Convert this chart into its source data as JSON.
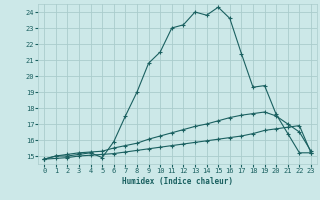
{
  "title": "",
  "xlabel": "Humidex (Indice chaleur)",
  "bg_color": "#cce8e8",
  "grid_color": "#aacccc",
  "line_color": "#1a6060",
  "xlim": [
    -0.5,
    23.5
  ],
  "ylim": [
    14.5,
    24.5
  ],
  "yticks": [
    15,
    16,
    17,
    18,
    19,
    20,
    21,
    22,
    23,
    24
  ],
  "xticks": [
    0,
    1,
    2,
    3,
    4,
    5,
    6,
    7,
    8,
    9,
    10,
    11,
    12,
    13,
    14,
    15,
    16,
    17,
    18,
    19,
    20,
    21,
    22,
    23
  ],
  "line1_x": [
    0,
    1,
    2,
    3,
    4,
    5,
    6,
    7,
    8,
    9,
    10,
    11,
    12,
    13,
    14,
    15,
    16,
    17,
    18,
    19,
    20,
    21,
    22,
    23
  ],
  "line1_y": [
    14.8,
    15.0,
    15.0,
    15.1,
    15.2,
    14.9,
    15.9,
    17.5,
    19.0,
    20.8,
    21.5,
    23.0,
    23.2,
    24.0,
    23.8,
    24.3,
    23.6,
    21.4,
    19.3,
    19.4,
    17.6,
    16.4,
    15.2,
    15.2
  ],
  "line2_x": [
    0,
    1,
    2,
    3,
    4,
    5,
    6,
    7,
    8,
    9,
    10,
    11,
    12,
    13,
    14,
    15,
    16,
    17,
    18,
    19,
    20,
    21,
    22,
    23
  ],
  "line2_y": [
    14.8,
    15.0,
    15.1,
    15.2,
    15.25,
    15.3,
    15.5,
    15.65,
    15.8,
    16.05,
    16.25,
    16.45,
    16.65,
    16.85,
    17.0,
    17.2,
    17.4,
    17.55,
    17.65,
    17.75,
    17.5,
    17.0,
    16.5,
    15.3
  ],
  "line3_x": [
    0,
    1,
    2,
    3,
    4,
    5,
    6,
    7,
    8,
    9,
    10,
    11,
    12,
    13,
    14,
    15,
    16,
    17,
    18,
    19,
    20,
    21,
    22,
    23
  ],
  "line3_y": [
    14.8,
    14.85,
    14.9,
    15.0,
    15.05,
    15.1,
    15.15,
    15.25,
    15.35,
    15.45,
    15.55,
    15.65,
    15.75,
    15.85,
    15.95,
    16.05,
    16.15,
    16.25,
    16.4,
    16.6,
    16.7,
    16.8,
    16.9,
    15.2
  ]
}
